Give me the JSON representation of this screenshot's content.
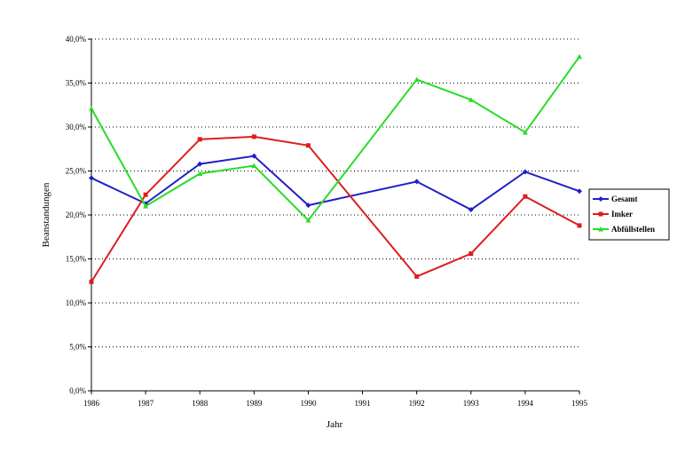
{
  "chart_data": {
    "type": "line",
    "title": "",
    "xlabel": "Jahr",
    "ylabel": "Beanstandungen",
    "categories": [
      "1986",
      "1987",
      "1988",
      "1989",
      "1990",
      "1991",
      "1992",
      "1993",
      "1994",
      "1995"
    ],
    "ylim": [
      0,
      40
    ],
    "ytick_values": [
      0,
      5,
      10,
      15,
      20,
      25,
      30,
      35,
      40
    ],
    "ytick_labels": [
      "0,0%",
      "5,0%",
      "10,0%",
      "15,0%",
      "20,0%",
      "25,0%",
      "30,0%",
      "35,0%",
      "40,0%"
    ],
    "grid": "horizontal dotted",
    "legend_position": "right",
    "series": [
      {
        "name": "Gesamt",
        "color": "#2020c8",
        "marker": "diamond",
        "values": [
          24.2,
          21.3,
          25.8,
          26.7,
          21.1,
          null,
          23.8,
          20.6,
          24.9,
          22.7
        ]
      },
      {
        "name": "Imker",
        "color": "#dc1e1e",
        "marker": "square",
        "values": [
          12.4,
          22.3,
          28.6,
          28.9,
          27.9,
          null,
          13.0,
          15.6,
          22.1,
          18.8
        ]
      },
      {
        "name": "Abfüllstellen",
        "color": "#28dc28",
        "marker": "triangle",
        "values": [
          32.1,
          21.0,
          24.7,
          25.6,
          19.4,
          null,
          35.4,
          33.1,
          29.4,
          38.0
        ]
      }
    ]
  }
}
